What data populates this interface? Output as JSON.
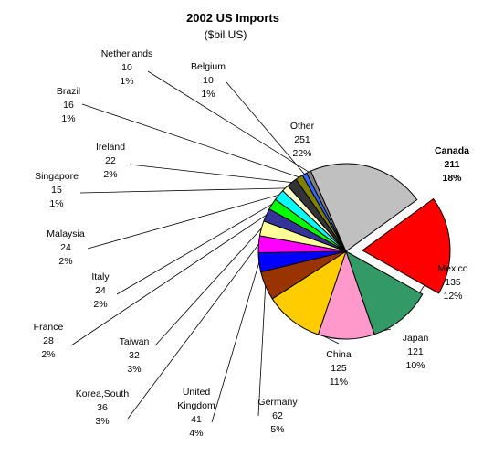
{
  "chart_data": {
    "type": "pie",
    "title": "2002 US Imports",
    "subtitle": "($bil US)",
    "slices": [
      {
        "name": "Canada",
        "value": 211,
        "percent": "18%",
        "color": "#ff0000",
        "exploded": true,
        "bold": true
      },
      {
        "name": "Mexico",
        "value": 135,
        "percent": "12%",
        "color": "#339966"
      },
      {
        "name": "Japan",
        "value": 121,
        "percent": "10%",
        "color": "#ff99cc"
      },
      {
        "name": "China",
        "value": 125,
        "percent": "11%",
        "color": "#ffcc00"
      },
      {
        "name": "Germany",
        "value": 62,
        "percent": "5%",
        "color": "#993300"
      },
      {
        "name": "United Kingdom",
        "value": 41,
        "percent": "4%",
        "color": "#0000ff"
      },
      {
        "name": "Korea,South",
        "value": 36,
        "percent": "3%",
        "color": "#ff00ff"
      },
      {
        "name": "Taiwan",
        "value": 32,
        "percent": "3%",
        "color": "#ffff99"
      },
      {
        "name": "France",
        "value": 28,
        "percent": "2%",
        "color": "#333399"
      },
      {
        "name": "Italy",
        "value": 24,
        "percent": "2%",
        "color": "#00ff00"
      },
      {
        "name": "Malaysia",
        "value": 24,
        "percent": "2%",
        "color": "#00ffff"
      },
      {
        "name": "Singapore",
        "value": 15,
        "percent": "1%",
        "color": "#ffffcc"
      },
      {
        "name": "Ireland",
        "value": 22,
        "percent": "2%",
        "color": "#333333"
      },
      {
        "name": "Brazil",
        "value": 16,
        "percent": "1%",
        "color": "#808000"
      },
      {
        "name": "Belgium",
        "value": 10,
        "percent": "1%",
        "color": "#3366ff"
      },
      {
        "name": "Netherlands",
        "value": 10,
        "percent": "1%",
        "color": "#808080"
      },
      {
        "name": "Other",
        "value": 251,
        "percent": "22%",
        "color": "#c0c0c0"
      }
    ]
  }
}
